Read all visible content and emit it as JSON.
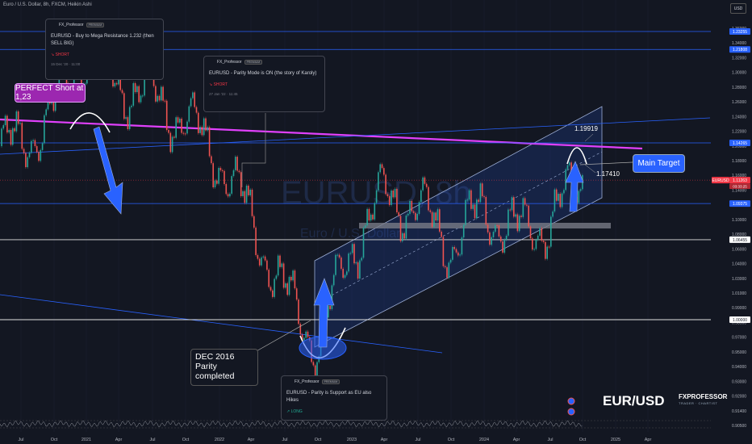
{
  "header": {
    "symbol_line": "Euro / U.S. Dollar, 8h, FXCM, Heikin Ashi",
    "currency_button": "USD"
  },
  "watermark": {
    "symbol": "EURUSD, 8h",
    "name": "Euro / U.S. Dollar"
  },
  "colors": {
    "background": "#131722",
    "bull": "#26a69a",
    "bear": "#ef5350",
    "resistance": "#e040fb",
    "channel": "#2962ff",
    "target_arrow": "#2962ff"
  },
  "cards": [
    {
      "author": "FX_Professor",
      "badge": "PREMIUM",
      "title": "EURUSD - Buy to Mega Resistance 1.232 (then SELL BIG)",
      "direction": "SHORT",
      "date": "15 Dec '20 · 11:00"
    },
    {
      "author": "FX_Professor",
      "badge": "PREMIUM",
      "title": "EURUSD - Parity Mode is ON (the story of Karoly)",
      "direction": "SHORT",
      "date": "27 Jan '22 · 11:45"
    },
    {
      "author": "FX_Professor",
      "badge": "PREMIUM",
      "title": "EURUSD - Parity is Support as EU also Hikes",
      "direction": "LONG",
      "date": ""
    }
  ],
  "callouts": {
    "perfect_short": "PERFECT Short at 1,23",
    "dec_2016": "DEC 2016\nParity\ncompleted",
    "main_target": "Main Target"
  },
  "levels": {
    "target_high": "1.19919",
    "target_low": "1.17410"
  },
  "brand": {
    "pair": "EUR/USD",
    "name": "FXPROFESSOR",
    "tagline": "TRADER · CHARTIST"
  },
  "chart_data": {
    "type": "line",
    "style": "heikin-ashi candles",
    "ylim": [
      0.905,
      1.38
    ],
    "y_ticks": [
      "1.36000",
      "1.34000",
      "1.32000",
      "1.30000",
      "1.28000",
      "1.26000",
      "1.24000",
      "1.22000",
      "1.20000",
      "1.18000",
      "1.16000",
      "1.14000",
      "1.12000",
      "1.10000",
      "1.08000",
      "1.06000",
      "1.04000",
      "1.03000",
      "1.01000",
      "0.99000",
      "0.98500",
      "0.97000",
      "0.95000",
      "0.94000",
      "0.93000",
      "0.92000",
      "0.91400",
      "0.90500"
    ],
    "x_ticks": [
      "Jul",
      "Oct",
      "2021",
      "Apr",
      "Jul",
      "Oct",
      "2022",
      "Apr",
      "Jul",
      "Oct",
      "2023",
      "Apr",
      "Jul",
      "Oct",
      "2024",
      "Apr",
      "Jul",
      "Oct",
      "2025",
      "Apr"
    ],
    "price_labels": [
      {
        "value": 1.2329,
        "text": "1.23290",
        "kind": "white"
      },
      {
        "value": 1.23255,
        "text": "1.23255",
        "kind": "blue"
      },
      {
        "value": 1.21808,
        "text": "1.21808",
        "kind": "blue"
      },
      {
        "value": 1.14265,
        "text": "1.14265",
        "kind": "blue"
      },
      {
        "value": 1.11263,
        "text": "1.11263",
        "kind": "red"
      },
      {
        "value": 1.09375,
        "text": "1.09375",
        "kind": "blue"
      },
      {
        "value": 1.06455,
        "text": "1.06455",
        "kind": "white"
      },
      {
        "value": 1.0,
        "text": "1.00000",
        "kind": "white"
      }
    ],
    "current": {
      "symbol": "EURUSD",
      "price": "1.11263",
      "countdown": "03:33:25"
    },
    "series": [
      {
        "x": [
          "Jul",
          "Oct",
          "2021",
          "Apr",
          "Jul",
          "Oct",
          "2022",
          "Apr",
          "Jul",
          "Oct",
          "2023",
          "Apr",
          "Jul",
          "Oct",
          "2024",
          "Apr",
          "Jul",
          "Oct"
        ],
        "values": [
          1.14,
          1.17,
          1.22,
          1.19,
          1.18,
          1.16,
          1.13,
          1.08,
          1.02,
          0.98,
          1.06,
          1.1,
          1.09,
          1.06,
          1.09,
          1.07,
          1.08,
          1.115
        ]
      }
    ]
  }
}
